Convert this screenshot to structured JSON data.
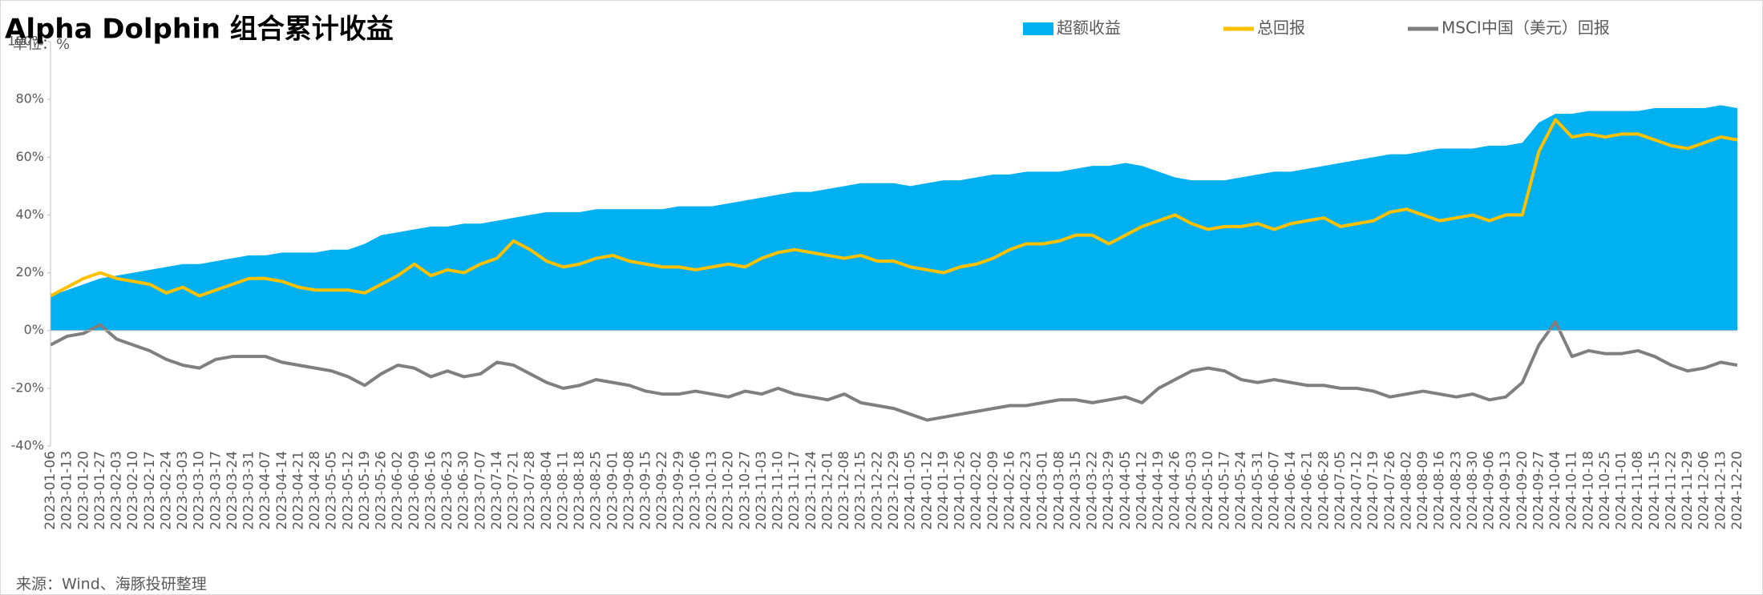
{
  "chart_data": {
    "type": "area_line",
    "title": "Alpha Dolphin 组合累计收益",
    "unit_label": "单位：%",
    "source": "来源：Wind、海豚投研整理",
    "categories": [
      "2023-01-06",
      "2023-01-13",
      "2023-01-20",
      "2023-01-27",
      "2023-02-03",
      "2023-02-10",
      "2023-02-17",
      "2023-02-24",
      "2023-03-03",
      "2023-03-10",
      "2023-03-17",
      "2023-03-24",
      "2023-03-31",
      "2023-04-07",
      "2023-04-14",
      "2023-04-21",
      "2023-04-28",
      "2023-05-05",
      "2023-05-12",
      "2023-05-19",
      "2023-05-26",
      "2023-06-02",
      "2023-06-09",
      "2023-06-16",
      "2023-06-23",
      "2023-06-30",
      "2023-07-07",
      "2023-07-14",
      "2023-07-21",
      "2023-07-28",
      "2023-08-04",
      "2023-08-11",
      "2023-08-18",
      "2023-08-25",
      "2023-09-01",
      "2023-09-08",
      "2023-09-15",
      "2023-09-22",
      "2023-09-29",
      "2023-10-06",
      "2023-10-13",
      "2023-10-20",
      "2023-10-27",
      "2023-11-03",
      "2023-11-10",
      "2023-11-17",
      "2023-11-24",
      "2023-12-01",
      "2023-12-08",
      "2023-12-15",
      "2023-12-22",
      "2023-12-29",
      "2024-01-05",
      "2024-01-12",
      "2024-01-19",
      "2024-01-26",
      "2024-02-02",
      "2024-02-09",
      "2024-02-16",
      "2024-02-23",
      "2024-03-01",
      "2024-03-08",
      "2024-03-15",
      "2024-03-22",
      "2024-03-29",
      "2024-04-05",
      "2024-04-12",
      "2024-04-19",
      "2024-04-26",
      "2024-05-03",
      "2024-05-10",
      "2024-05-17",
      "2024-05-24",
      "2024-05-31",
      "2024-06-07",
      "2024-06-14",
      "2024-06-21",
      "2024-06-28",
      "2024-07-05",
      "2024-07-12",
      "2024-07-19",
      "2024-07-26",
      "2024-08-02",
      "2024-08-09",
      "2024-08-16",
      "2024-08-23",
      "2024-08-30",
      "2024-09-06",
      "2024-09-13",
      "2024-09-20",
      "2024-09-27",
      "2024-10-04",
      "2024-10-11",
      "2024-10-18",
      "2024-10-25",
      "2024-11-01",
      "2024-11-08",
      "2024-11-15",
      "2024-11-22",
      "2024-11-29",
      "2024-12-06",
      "2024-12-13",
      "2024-12-20"
    ],
    "series": [
      {
        "name": "超额收益",
        "kind": "area",
        "color": "#00b0f0",
        "values": [
          12,
          14,
          16,
          18,
          19,
          20,
          21,
          22,
          23,
          23,
          24,
          25,
          26,
          26,
          27,
          27,
          27,
          28,
          28,
          30,
          33,
          34,
          35,
          36,
          36,
          37,
          37,
          38,
          39,
          40,
          41,
          41,
          41,
          42,
          42,
          42,
          42,
          42,
          43,
          43,
          43,
          44,
          45,
          46,
          47,
          48,
          48,
          49,
          50,
          51,
          51,
          51,
          50,
          51,
          52,
          52,
          53,
          54,
          54,
          55,
          55,
          55,
          56,
          57,
          57,
          58,
          57,
          55,
          53,
          52,
          52,
          52,
          53,
          54,
          55,
          55,
          56,
          57,
          58,
          59,
          60,
          61,
          61,
          62,
          63,
          63,
          63,
          64,
          64,
          65,
          72,
          75,
          75,
          76,
          76,
          76,
          76,
          77,
          77,
          77,
          77,
          78,
          77
        ]
      },
      {
        "name": "总回报",
        "kind": "line",
        "color": "#ffc000",
        "values": [
          12,
          15,
          18,
          20,
          18,
          17,
          16,
          13,
          15,
          12,
          14,
          16,
          18,
          18,
          17,
          15,
          14,
          14,
          14,
          13,
          16,
          19,
          23,
          19,
          21,
          20,
          23,
          25,
          31,
          28,
          24,
          22,
          23,
          25,
          26,
          24,
          23,
          22,
          22,
          21,
          22,
          23,
          22,
          25,
          27,
          28,
          27,
          26,
          25,
          26,
          24,
          24,
          22,
          21,
          20,
          22,
          23,
          25,
          28,
          30,
          30,
          31,
          33,
          33,
          30,
          33,
          36,
          38,
          40,
          37,
          35,
          36,
          36,
          37,
          35,
          37,
          38,
          39,
          36,
          37,
          38,
          41,
          42,
          40,
          38,
          39,
          40,
          38,
          40,
          40,
          62,
          73,
          67,
          68,
          67,
          68,
          68,
          66,
          64,
          63,
          65,
          67,
          66
        ]
      },
      {
        "name": "MSCI中国（美元）回报",
        "kind": "line",
        "color": "#7f7f7f",
        "values": [
          -5,
          -2,
          -1,
          2,
          -3,
          -5,
          -7,
          -10,
          -12,
          -13,
          -10,
          -9,
          -9,
          -9,
          -11,
          -12,
          -13,
          -14,
          -16,
          -19,
          -15,
          -12,
          -13,
          -16,
          -14,
          -16,
          -15,
          -11,
          -12,
          -15,
          -18,
          -20,
          -19,
          -17,
          -18,
          -19,
          -21,
          -22,
          -22,
          -21,
          -22,
          -23,
          -21,
          -22,
          -20,
          -22,
          -23,
          -24,
          -22,
          -25,
          -26,
          -27,
          -29,
          -31,
          -30,
          -29,
          -28,
          -27,
          -26,
          -26,
          -25,
          -24,
          -24,
          -25,
          -24,
          -23,
          -25,
          -20,
          -17,
          -14,
          -13,
          -14,
          -17,
          -18,
          -17,
          -18,
          -19,
          -19,
          -20,
          -20,
          -21,
          -23,
          -22,
          -21,
          -22,
          -23,
          -22,
          -24,
          -23,
          -18,
          -5,
          3,
          -9,
          -7,
          -8,
          -8,
          -7,
          -9,
          -12,
          -14,
          -13,
          -11,
          -12
        ]
      }
    ],
    "ylim": [
      -40,
      100
    ],
    "yticks": [
      {
        "value": -40,
        "label": "-40%"
      },
      {
        "value": -20,
        "label": "-20%"
      },
      {
        "value": 0,
        "label": "0%"
      },
      {
        "value": 20,
        "label": "20%"
      },
      {
        "value": 40,
        "label": "40%"
      },
      {
        "value": 60,
        "label": "60%"
      },
      {
        "value": 80,
        "label": "80%"
      },
      {
        "value": 100,
        "label": "100%"
      }
    ],
    "grid": false,
    "legend": "top"
  }
}
